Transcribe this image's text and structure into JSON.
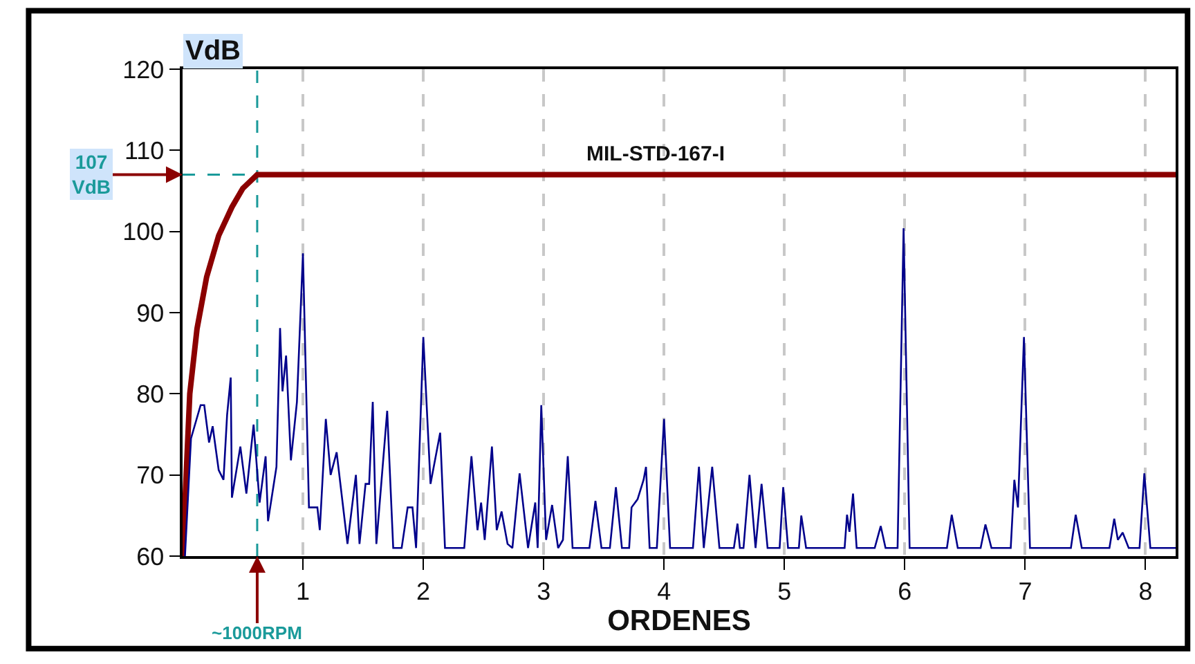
{
  "chart_data": {
    "type": "line",
    "xlabel": "ORDENES",
    "ylabel": "VdB",
    "xlim": [
      0,
      8.25
    ],
    "ylim": [
      60,
      120
    ],
    "xticks": [
      1,
      2,
      3,
      4,
      5,
      6,
      7,
      8
    ],
    "yticks": [
      60,
      70,
      80,
      90,
      100,
      110,
      120
    ],
    "grid": "x",
    "marker": "none",
    "series": [
      {
        "name": "MIL-STD-167-I",
        "color": "#8b0000",
        "x": [
          0,
          0.03,
          0.06,
          0.12,
          0.2,
          0.3,
          0.41,
          0.5,
          0.62,
          8.25
        ],
        "values": [
          60,
          70,
          80,
          88,
          94.4,
          99.5,
          103,
          105.3,
          107,
          107
        ]
      },
      {
        "color": "#00008b",
        "x": [
          0.02,
          0.07,
          0.15,
          0.18,
          0.22,
          0.25,
          0.3,
          0.34,
          0.37,
          0.4,
          0.41,
          0.48,
          0.53,
          0.59,
          0.64,
          0.69,
          0.71,
          0.78,
          0.81,
          0.83,
          0.86,
          0.9,
          0.95,
          1.0,
          1.05,
          1.12,
          1.14,
          1.19,
          1.23,
          1.28,
          1.37,
          1.44,
          1.47,
          1.52,
          1.55,
          1.58,
          1.61,
          1.7,
          1.75,
          1.82,
          1.87,
          1.91,
          1.94,
          2.0,
          2.06,
          2.14,
          2.18,
          2.34,
          2.4,
          2.45,
          2.48,
          2.51,
          2.57,
          2.61,
          2.65,
          2.7,
          2.74,
          2.8,
          2.87,
          2.93,
          2.95,
          2.98,
          3.02,
          3.07,
          3.12,
          3.16,
          3.2,
          3.24,
          3.38,
          3.43,
          3.48,
          3.55,
          3.6,
          3.65,
          3.71,
          3.73,
          3.78,
          3.83,
          3.85,
          3.88,
          3.94,
          4.0,
          4.05,
          4.24,
          4.29,
          4.33,
          4.4,
          4.46,
          4.58,
          4.61,
          4.63,
          4.66,
          4.71,
          4.76,
          4.81,
          4.86,
          4.96,
          4.99,
          5.03,
          5.12,
          5.14,
          5.18,
          5.5,
          5.52,
          5.54,
          5.57,
          5.6,
          5.75,
          5.8,
          5.84,
          5.94,
          5.99,
          6.04,
          6.35,
          6.39,
          6.44,
          6.63,
          6.67,
          6.72,
          6.88,
          6.91,
          6.94,
          6.99,
          7.04,
          7.38,
          7.42,
          7.47,
          7.7,
          7.74,
          7.77,
          7.81,
          7.86,
          7.95,
          7.99,
          8.04,
          8.25
        ],
        "values": [
          60,
          74.5,
          78.6,
          78.6,
          74,
          76,
          70.6,
          69.4,
          77.4,
          82,
          67.2,
          73.5,
          67.7,
          76.2,
          66.6,
          72.3,
          64.3,
          71,
          88.1,
          80.3,
          84.7,
          71.8,
          79,
          97.3,
          66,
          66,
          63.2,
          76.9,
          70,
          72.8,
          61.5,
          70,
          61.5,
          68.9,
          68.9,
          79,
          61.5,
          77.9,
          61,
          61,
          66,
          66,
          61,
          87,
          68.9,
          75.2,
          61,
          61,
          72.3,
          63.2,
          66.6,
          62,
          73.5,
          63.2,
          65.5,
          61.5,
          61,
          70.2,
          61,
          66.6,
          61,
          78.6,
          62,
          66.3,
          61,
          62,
          72.3,
          61,
          61,
          66.8,
          61,
          61,
          68.5,
          61,
          61,
          66,
          67,
          69.4,
          71,
          61,
          61,
          76.9,
          61,
          61,
          71,
          61,
          71,
          61,
          61,
          64,
          61,
          61,
          70,
          61,
          68.9,
          61,
          61,
          68.5,
          61,
          61,
          65,
          61,
          61,
          65.1,
          63,
          67.7,
          61,
          61,
          63.7,
          61,
          61,
          100.4,
          61,
          61,
          65.1,
          61,
          61,
          63.9,
          61,
          61,
          69.4,
          66,
          87,
          61,
          61,
          65.1,
          61,
          61,
          64.6,
          62,
          62.9,
          61,
          61,
          70.2,
          61,
          61
        ]
      }
    ],
    "ref_lines": [
      {
        "axis": "y",
        "value": 107,
        "label": "107\nVdB",
        "color": "#1a9a9a",
        "line_style": "dashed"
      },
      {
        "axis": "x",
        "value": 0.62,
        "label": "~1000RPM",
        "color": "#1a9a9a",
        "line_style": "dashed"
      }
    ]
  }
}
